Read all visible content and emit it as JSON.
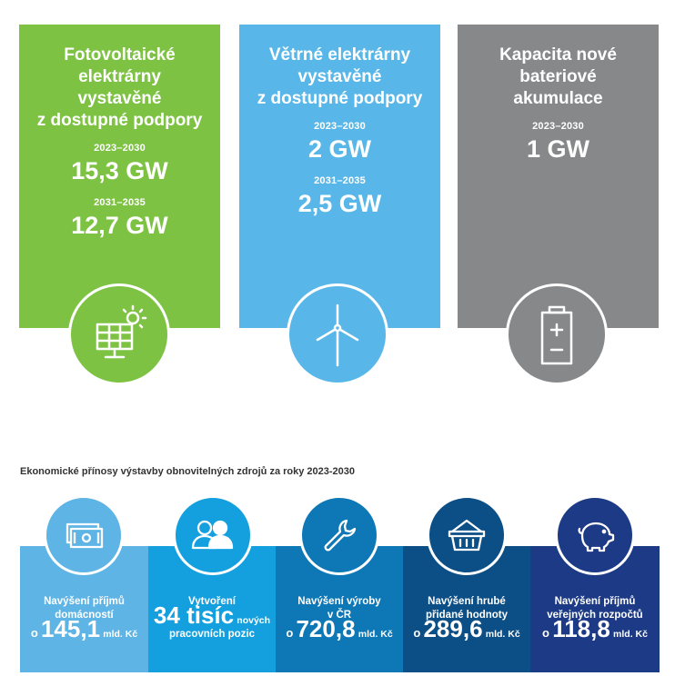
{
  "cards": [
    {
      "title_lines": [
        "Fotovoltaické",
        "elektrárny",
        "vystavěné",
        "z dostupné podpory"
      ],
      "period1": "2023–2030",
      "value1": "15,3 GW",
      "period2": "2031–2035",
      "value2": "12,7 GW",
      "color": "#7dc242",
      "icon": "solar-panel-icon"
    },
    {
      "title_lines": [
        "Větrné elektrárny",
        "vystavěné",
        "z dostupné podpory"
      ],
      "period1": "2023–2030",
      "value1": "2 GW",
      "period2": "2031–2035",
      "value2": "2,5 GW",
      "color": "#58b7e8",
      "icon": "wind-turbine-icon"
    },
    {
      "title_lines": [
        "Kapacita nové",
        "bateriové",
        "akumulace"
      ],
      "period1": "2023–2030",
      "value1": "1 GW",
      "color": "#878889",
      "icon": "battery-icon"
    }
  ],
  "benefits": {
    "title": "Ekonomické přínosy výstavby obnovitelných zdrojů za roky 2023-2030",
    "tiles": [
      {
        "label_lines": [
          "Navýšení příjmů",
          "domácností"
        ],
        "prefix": "o",
        "value": "145,1",
        "unit": "mld. Kč",
        "color": "#5fb4e6",
        "icon": "money-icon"
      },
      {
        "label_lines": [
          "Vytvoření"
        ],
        "value": "34 tisíc",
        "suffix": "nových",
        "label_after": "pracovních pozic",
        "color": "#14a0de",
        "icon": "people-icon"
      },
      {
        "label_lines": [
          "Navýšení výroby",
          "v ČR"
        ],
        "prefix": "o",
        "value": "720,8",
        "unit": "mld. Kč",
        "color": "#0d78b5",
        "icon": "wrench-icon"
      },
      {
        "label_lines": [
          "Navýšení hrubé",
          "přidané hodnoty"
        ],
        "prefix": "o",
        "value": "289,6",
        "unit": "mld. Kč",
        "color": "#0c4f87",
        "icon": "basket-icon"
      },
      {
        "label_lines": [
          "Navýšení příjmů",
          "veřejných rozpočtů"
        ],
        "prefix": "o",
        "value": "118,8",
        "unit": "mld. Kč",
        "color": "#1c3a85",
        "icon": "piggy-bank-icon"
      }
    ]
  }
}
